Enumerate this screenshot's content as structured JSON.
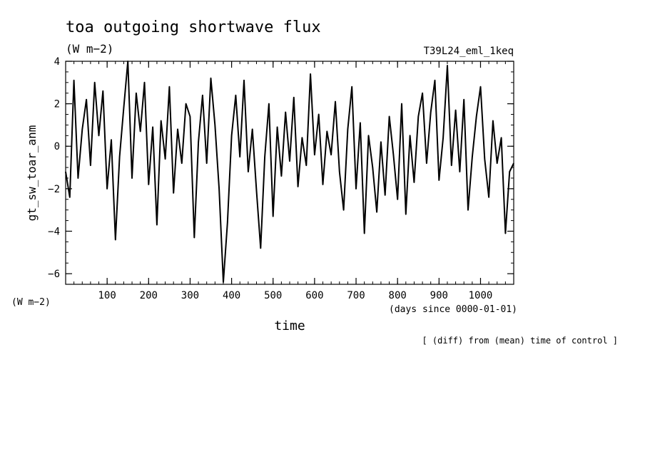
{
  "chart_data": {
    "type": "line",
    "title": "toa outgoing shortwave flux",
    "subtitle": "(W m−2)",
    "run_label": "T39L24_eml_1keq",
    "ylabel": "gt_sw_toar_anm",
    "yunit": "(W m−2)",
    "xlabel": "time",
    "xunit": "(days since 0000-01-01)",
    "footnote": "[ (diff) from (mean) time of control ]",
    "xlim": [
      0,
      1080
    ],
    "ylim": [
      -6.5,
      4
    ],
    "xticks": [
      100,
      200,
      300,
      400,
      500,
      600,
      700,
      800,
      900,
      1000
    ],
    "yticks": [
      4,
      2,
      0,
      -2,
      -4,
      -6
    ],
    "grid": false,
    "line_color": "#000000",
    "series": [
      {
        "x": [
          0,
          10,
          20,
          30,
          40,
          50,
          60,
          70,
          80,
          90,
          100,
          110,
          120,
          130,
          140,
          150,
          160,
          170,
          180,
          190,
          200,
          210,
          220,
          230,
          240,
          250,
          260,
          270,
          280,
          290,
          300,
          310,
          320,
          330,
          340,
          350,
          360,
          370,
          380,
          390,
          400,
          410,
          420,
          430,
          440,
          450,
          460,
          470,
          480,
          490,
          500,
          510,
          520,
          530,
          540,
          550,
          560,
          570,
          580,
          590,
          600,
          610,
          620,
          630,
          640,
          650,
          660,
          670,
          680,
          690,
          700,
          710,
          720,
          730,
          740,
          750,
          760,
          770,
          780,
          790,
          800,
          810,
          820,
          830,
          840,
          850,
          860,
          870,
          880,
          890,
          900,
          910,
          920,
          930,
          940,
          950,
          960,
          970,
          980,
          990,
          1000,
          1010,
          1020,
          1030,
          1040,
          1050,
          1060,
          1070,
          1080
        ],
        "values": [
          -1.2,
          -2.4,
          3.1,
          -1.5,
          0.8,
          2.2,
          -0.9,
          3.0,
          0.5,
          2.6,
          -2.0,
          0.3,
          -4.4,
          -0.5,
          1.8,
          4.0,
          -1.5,
          2.5,
          0.7,
          3.0,
          -1.8,
          0.9,
          -3.7,
          1.2,
          -0.6,
          2.8,
          -2.2,
          0.8,
          -0.8,
          2.0,
          1.4,
          -4.3,
          0.2,
          2.4,
          -0.8,
          3.2,
          1.0,
          -2.0,
          -6.4,
          -3.6,
          0.5,
          2.4,
          -0.5,
          3.1,
          -1.2,
          0.8,
          -2.1,
          -4.8,
          -0.5,
          2.0,
          -3.3,
          0.9,
          -1.4,
          1.6,
          -0.7,
          2.3,
          -1.9,
          0.4,
          -0.9,
          3.4,
          -0.4,
          1.5,
          -1.8,
          0.7,
          -0.4,
          2.1,
          -1.2,
          -3.0,
          0.8,
          2.8,
          -2.0,
          1.1,
          -4.1,
          0.5,
          -1.0,
          -3.1,
          0.2,
          -2.3,
          1.4,
          -0.4,
          -2.5,
          2.0,
          -3.2,
          0.5,
          -1.7,
          1.4,
          2.5,
          -0.8,
          1.6,
          3.1,
          -1.6,
          0.4,
          3.8,
          -0.9,
          1.7,
          -1.2,
          2.2,
          -3.0,
          -0.5,
          1.4,
          2.8,
          -0.6,
          -2.4,
          1.2,
          -0.8,
          0.4,
          -4.1,
          -1.2,
          -0.8
        ]
      }
    ]
  }
}
